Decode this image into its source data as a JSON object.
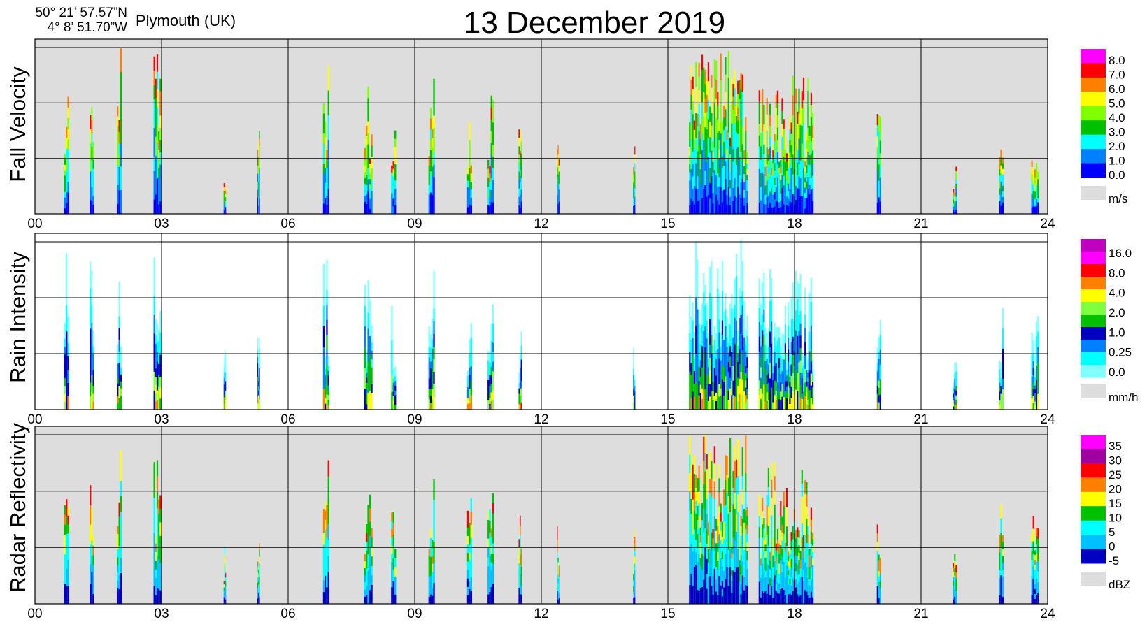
{
  "header": {
    "lat": "50° 21’ 57.57”N",
    "lon": "4°  8’ 51.70”W",
    "location": "Plymouth (UK)",
    "title": "13 December  2019"
  },
  "chart_data": [
    {
      "type": "heatmap",
      "ylabel": "Fall Velocity",
      "x_ticks": [
        "00",
        "03",
        "06",
        "09",
        "12",
        "15",
        "18",
        "21",
        "24"
      ],
      "xlim": [
        0,
        24
      ],
      "colorbar": {
        "labels": [
          "8.0",
          "7.0",
          "6.0",
          "5.0",
          "4.0",
          "3.0",
          "2.0",
          "1.0",
          "0.0"
        ],
        "colors": [
          "#ff00ff",
          "#ff0000",
          "#ff8000",
          "#ffff00",
          "#80ff00",
          "#00c000",
          "#00ffff",
          "#0080ff",
          "#0000ff"
        ],
        "nodata_color": "#dddddd",
        "unit": "m/s"
      },
      "background": "#dddddd",
      "events": [
        {
          "t": 0.75,
          "top": 0.98,
          "w": 0.12,
          "cmap": "fv"
        },
        {
          "t": 1.35,
          "top": 0.9,
          "w": 0.1,
          "cmap": "fv"
        },
        {
          "t": 2.0,
          "top": 0.95,
          "w": 0.12,
          "cmap": "fv"
        },
        {
          "t": 2.9,
          "top": 0.97,
          "w": 0.18,
          "cmap": "fv"
        },
        {
          "t": 4.5,
          "top": 0.35,
          "w": 0.06,
          "cmap": "fv"
        },
        {
          "t": 5.3,
          "top": 0.6,
          "w": 0.06,
          "cmap": "fv"
        },
        {
          "t": 6.9,
          "top": 0.85,
          "w": 0.15,
          "cmap": "fv"
        },
        {
          "t": 7.9,
          "top": 0.75,
          "w": 0.2,
          "cmap": "fv"
        },
        {
          "t": 8.5,
          "top": 0.65,
          "w": 0.12,
          "cmap": "fv"
        },
        {
          "t": 9.4,
          "top": 0.8,
          "w": 0.15,
          "cmap": "fv"
        },
        {
          "t": 10.3,
          "top": 0.6,
          "w": 0.12,
          "cmap": "fv"
        },
        {
          "t": 10.8,
          "top": 0.72,
          "w": 0.15,
          "cmap": "fv"
        },
        {
          "t": 11.5,
          "top": 0.55,
          "w": 0.08,
          "cmap": "fv"
        },
        {
          "t": 12.4,
          "top": 0.55,
          "w": 0.06,
          "cmap": "fv"
        },
        {
          "t": 14.2,
          "top": 0.45,
          "w": 0.05,
          "cmap": "fv"
        },
        {
          "t": 16.2,
          "top": 0.97,
          "w": 1.4,
          "cmap": "fv"
        },
        {
          "t": 17.8,
          "top": 0.8,
          "w": 1.3,
          "cmap": "fv"
        },
        {
          "t": 20.0,
          "top": 0.6,
          "w": 0.1,
          "cmap": "fv"
        },
        {
          "t": 21.8,
          "top": 0.3,
          "w": 0.1,
          "cmap": "fv"
        },
        {
          "t": 22.9,
          "top": 0.58,
          "w": 0.12,
          "cmap": "fv"
        },
        {
          "t": 23.7,
          "top": 0.6,
          "w": 0.18,
          "cmap": "fv"
        }
      ]
    },
    {
      "type": "heatmap",
      "ylabel": "Rain Intensity",
      "x_ticks": [
        "00",
        "03",
        "06",
        "09",
        "12",
        "15",
        "18",
        "21",
        "24"
      ],
      "xlim": [
        0,
        24
      ],
      "colorbar": {
        "labels": [
          "16.0",
          "8.0",
          "4.0",
          "2.0",
          "1.0",
          "0.25",
          "0.0"
        ],
        "colors": [
          "#c000c0",
          "#ff00ff",
          "#ff0000",
          "#ff8000",
          "#ffff00",
          "#80ff40",
          "#00c000",
          "#0000c0",
          "#0080ff",
          "#00ffff",
          "#80ffff"
        ],
        "nodata_color": "#dddddd",
        "unit": "mm/h"
      },
      "background": "#ffffff",
      "events": [
        {
          "t": 0.75,
          "top": 0.98,
          "w": 0.12,
          "cmap": "ri"
        },
        {
          "t": 1.35,
          "top": 0.9,
          "w": 0.1,
          "cmap": "ri"
        },
        {
          "t": 2.0,
          "top": 0.95,
          "w": 0.12,
          "cmap": "ri"
        },
        {
          "t": 2.9,
          "top": 0.97,
          "w": 0.18,
          "cmap": "ri"
        },
        {
          "t": 4.5,
          "top": 0.35,
          "w": 0.06,
          "cmap": "ri"
        },
        {
          "t": 5.3,
          "top": 0.6,
          "w": 0.06,
          "cmap": "ri"
        },
        {
          "t": 6.9,
          "top": 0.85,
          "w": 0.15,
          "cmap": "ri"
        },
        {
          "t": 7.9,
          "top": 0.75,
          "w": 0.2,
          "cmap": "ri"
        },
        {
          "t": 8.5,
          "top": 0.65,
          "w": 0.12,
          "cmap": "ri"
        },
        {
          "t": 9.4,
          "top": 0.8,
          "w": 0.15,
          "cmap": "ri"
        },
        {
          "t": 10.3,
          "top": 0.6,
          "w": 0.12,
          "cmap": "ri"
        },
        {
          "t": 10.8,
          "top": 0.72,
          "w": 0.15,
          "cmap": "ri"
        },
        {
          "t": 11.5,
          "top": 0.55,
          "w": 0.08,
          "cmap": "ri"
        },
        {
          "t": 14.2,
          "top": 0.45,
          "w": 0.05,
          "cmap": "ri"
        },
        {
          "t": 16.2,
          "top": 0.97,
          "w": 1.4,
          "cmap": "ri"
        },
        {
          "t": 17.8,
          "top": 0.8,
          "w": 1.3,
          "cmap": "ri"
        },
        {
          "t": 20.0,
          "top": 0.6,
          "w": 0.1,
          "cmap": "ri"
        },
        {
          "t": 21.8,
          "top": 0.3,
          "w": 0.1,
          "cmap": "ri"
        },
        {
          "t": 22.9,
          "top": 0.58,
          "w": 0.12,
          "cmap": "ri"
        },
        {
          "t": 23.7,
          "top": 0.6,
          "w": 0.18,
          "cmap": "ri"
        }
      ]
    },
    {
      "type": "heatmap",
      "ylabel": "Radar Reflectivity",
      "x_ticks": [
        "00",
        "03",
        "06",
        "09",
        "12",
        "15",
        "18",
        "21",
        "24"
      ],
      "xlim": [
        0,
        24
      ],
      "colorbar": {
        "labels": [
          "35",
          "30",
          "25",
          "20",
          "15",
          "10",
          "5",
          "0",
          "-5"
        ],
        "colors": [
          "#ff00ff",
          "#a000a0",
          "#ff0000",
          "#ff8000",
          "#ffff00",
          "#00c000",
          "#00ffff",
          "#00c0ff",
          "#0000c0"
        ],
        "nodata_color": "#dddddd",
        "unit": "dBZ"
      },
      "background": "#dddddd",
      "events": [
        {
          "t": 0.75,
          "top": 0.98,
          "w": 0.12,
          "cmap": "rr"
        },
        {
          "t": 1.35,
          "top": 0.9,
          "w": 0.1,
          "cmap": "rr"
        },
        {
          "t": 2.0,
          "top": 0.95,
          "w": 0.12,
          "cmap": "rr"
        },
        {
          "t": 2.9,
          "top": 0.97,
          "w": 0.18,
          "cmap": "rr"
        },
        {
          "t": 4.5,
          "top": 0.35,
          "w": 0.06,
          "cmap": "rr"
        },
        {
          "t": 5.3,
          "top": 0.6,
          "w": 0.06,
          "cmap": "rr"
        },
        {
          "t": 6.9,
          "top": 0.85,
          "w": 0.15,
          "cmap": "rr"
        },
        {
          "t": 7.9,
          "top": 0.75,
          "w": 0.2,
          "cmap": "rr"
        },
        {
          "t": 8.5,
          "top": 0.65,
          "w": 0.12,
          "cmap": "rr"
        },
        {
          "t": 9.4,
          "top": 0.8,
          "w": 0.15,
          "cmap": "rr"
        },
        {
          "t": 10.3,
          "top": 0.6,
          "w": 0.12,
          "cmap": "rr"
        },
        {
          "t": 10.8,
          "top": 0.72,
          "w": 0.15,
          "cmap": "rr"
        },
        {
          "t": 11.5,
          "top": 0.55,
          "w": 0.08,
          "cmap": "rr"
        },
        {
          "t": 12.4,
          "top": 0.55,
          "w": 0.06,
          "cmap": "rr"
        },
        {
          "t": 14.2,
          "top": 0.45,
          "w": 0.05,
          "cmap": "rr"
        },
        {
          "t": 16.2,
          "top": 0.97,
          "w": 1.4,
          "cmap": "rr"
        },
        {
          "t": 17.8,
          "top": 0.8,
          "w": 1.3,
          "cmap": "rr"
        },
        {
          "t": 20.0,
          "top": 0.6,
          "w": 0.1,
          "cmap": "rr"
        },
        {
          "t": 21.8,
          "top": 0.3,
          "w": 0.1,
          "cmap": "rr"
        },
        {
          "t": 22.9,
          "top": 0.58,
          "w": 0.12,
          "cmap": "rr"
        },
        {
          "t": 23.7,
          "top": 0.6,
          "w": 0.18,
          "cmap": "rr"
        }
      ]
    }
  ]
}
